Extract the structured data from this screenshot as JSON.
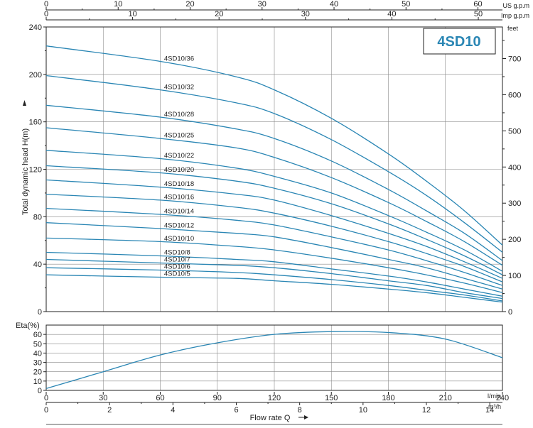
{
  "colors": {
    "curve": "#2a86b4",
    "grid": "#888888",
    "axis": "#222222",
    "title": "#2a86b4"
  },
  "chart_data": [
    {
      "type": "line",
      "title": "4SD10",
      "ylabel": "Total dynamic head H(m)",
      "ylabel_right": "feet",
      "top_axes": [
        {
          "unit": "US g.p.m",
          "ticks": [
            "0",
            "10",
            "20",
            "30",
            "40",
            "50",
            "60"
          ]
        },
        {
          "unit": "Imp g.p.m",
          "ticks": [
            "0",
            "10",
            "20",
            "30",
            "40",
            "50"
          ]
        }
      ],
      "ylim": [
        0,
        240
      ],
      "yticks": [
        "0",
        "40",
        "80",
        "120",
        "160",
        "200",
        "240"
      ],
      "yticks_right": [
        "0",
        "100",
        "200",
        "300",
        "400",
        "500",
        "600",
        "700"
      ],
      "xlim": [
        0,
        240
      ],
      "grid": true,
      "series": [
        {
          "name": "4SD10/36",
          "x": [
            0,
            60,
            100,
            120,
            150,
            180,
            200,
            220,
            240
          ],
          "values": [
            224,
            211,
            198,
            187,
            163,
            133,
            110,
            85,
            56
          ]
        },
        {
          "name": "4SD10/32",
          "x": [
            0,
            60,
            100,
            120,
            150,
            180,
            200,
            220,
            240
          ],
          "values": [
            199,
            187,
            176,
            167,
            145,
            118,
            98,
            75,
            50
          ]
        },
        {
          "name": "4SD10/28",
          "x": [
            0,
            60,
            100,
            120,
            150,
            180,
            200,
            220,
            240
          ],
          "values": [
            174,
            164,
            154,
            146,
            127,
            103,
            85,
            66,
            43
          ]
        },
        {
          "name": "4SD10/25",
          "x": [
            0,
            60,
            100,
            120,
            150,
            180,
            200,
            220,
            240
          ],
          "values": [
            155,
            146,
            138,
            130,
            113,
            92,
            76,
            59,
            39
          ]
        },
        {
          "name": "4SD10/22",
          "x": [
            0,
            60,
            100,
            120,
            150,
            180,
            200,
            220,
            240
          ],
          "values": [
            136,
            129,
            121,
            114,
            100,
            81,
            67,
            52,
            34
          ]
        },
        {
          "name": "4SD10/20",
          "x": [
            0,
            60,
            100,
            120,
            150,
            180,
            200,
            220,
            240
          ],
          "values": [
            123,
            117,
            110,
            104,
            91,
            74,
            61,
            47,
            31
          ]
        },
        {
          "name": "4SD10/18",
          "x": [
            0,
            60,
            100,
            120,
            150,
            180,
            200,
            220,
            240
          ],
          "values": [
            111,
            105,
            99,
            94,
            81,
            66,
            55,
            42,
            28
          ]
        },
        {
          "name": "4SD10/16",
          "x": [
            0,
            60,
            100,
            120,
            150,
            180,
            200,
            220,
            240
          ],
          "values": [
            99,
            94,
            88,
            83,
            72,
            59,
            49,
            38,
            25
          ]
        },
        {
          "name": "4SD10/14",
          "x": [
            0,
            60,
            100,
            120,
            150,
            180,
            200,
            220,
            240
          ],
          "values": [
            87,
            82,
            77,
            73,
            63,
            52,
            43,
            33,
            22
          ]
        },
        {
          "name": "4SD10/12",
          "x": [
            0,
            60,
            100,
            120,
            150,
            180,
            200,
            220,
            240
          ],
          "values": [
            75,
            70,
            66,
            63,
            54,
            44,
            37,
            28,
            19
          ]
        },
        {
          "name": "4SD10/10",
          "x": [
            0,
            60,
            100,
            120,
            150,
            180,
            200,
            220,
            240
          ],
          "values": [
            62,
            59,
            55,
            52,
            45,
            37,
            31,
            24,
            16
          ]
        },
        {
          "name": "4SD10/8",
          "x": [
            0,
            60,
            100,
            120,
            150,
            180,
            200,
            220,
            240
          ],
          "values": [
            50,
            47,
            44,
            42,
            36,
            30,
            25,
            19,
            13
          ]
        },
        {
          "name": "4SD10/7",
          "x": [
            0,
            60,
            100,
            120,
            150,
            180,
            200,
            220,
            240
          ],
          "values": [
            44,
            41,
            39,
            37,
            32,
            26,
            22,
            16,
            11
          ]
        },
        {
          "name": "4SD10/6",
          "x": [
            0,
            60,
            100,
            120,
            150,
            180,
            200,
            220,
            240
          ],
          "values": [
            37,
            35,
            33,
            31,
            27,
            22,
            18,
            14,
            9
          ]
        },
        {
          "name": "4SD10/5",
          "x": [
            0,
            60,
            100,
            120,
            150,
            180,
            200,
            220,
            240
          ],
          "values": [
            31,
            29,
            28,
            26,
            23,
            19,
            16,
            12,
            8
          ]
        }
      ]
    },
    {
      "type": "line",
      "ylabel": "Eta(%)",
      "ylim": [
        0,
        70
      ],
      "yticks": [
        "0",
        "10",
        "20",
        "30",
        "40",
        "50",
        "60"
      ],
      "xlabel": "Flow rate Q",
      "x_axes": [
        {
          "unit": "l/min",
          "ticks": [
            "0",
            "30",
            "60",
            "90",
            "120",
            "150",
            "180",
            "210",
            "240"
          ]
        },
        {
          "unit": "m³/h",
          "ticks": [
            "0",
            "2",
            "4",
            "6",
            "8",
            "10",
            "12",
            "14"
          ]
        }
      ],
      "xlim": [
        0,
        240
      ],
      "grid": true,
      "series": [
        {
          "x": [
            0,
            30,
            60,
            90,
            120,
            150,
            180,
            210,
            240
          ],
          "values": [
            2,
            20,
            38,
            51,
            60,
            63,
            62,
            55,
            35
          ]
        }
      ]
    }
  ]
}
